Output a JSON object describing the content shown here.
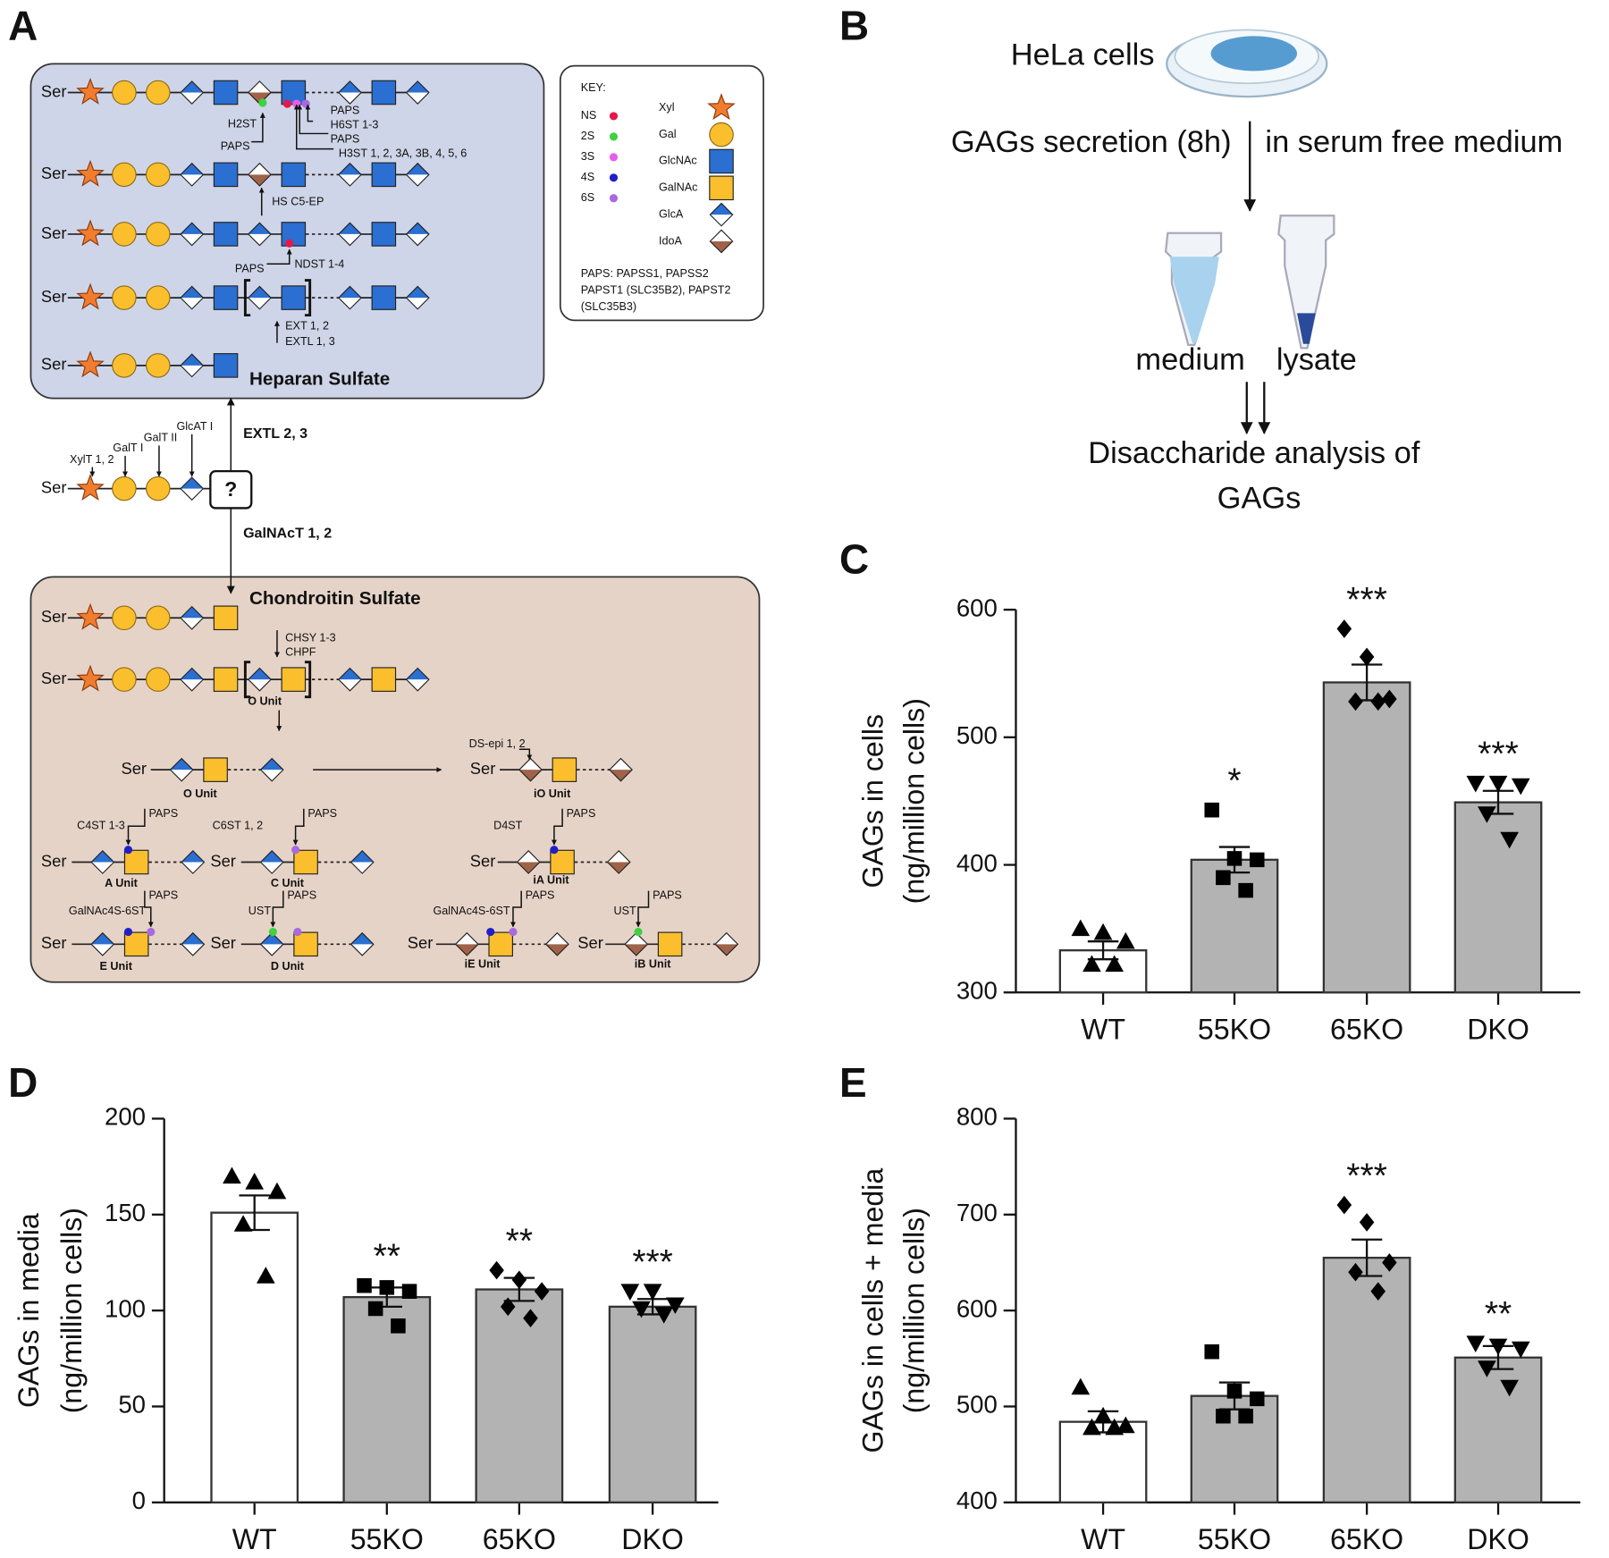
{
  "panel_labels": [
    "A",
    "B",
    "C",
    "D",
    "E"
  ],
  "panel_a": {
    "ser": "Ser",
    "heparan": {
      "title": "Heparan Sulfate",
      "enzymes": [
        "H2ST",
        "PAPS",
        "PAPS",
        "H6ST 1-3",
        "PAPS",
        "H3ST 1, 2, 3A, 3B, 4, 5, 6",
        "HS C5-EP",
        "PAPS",
        "NDST 1-4",
        "EXT 1, 2",
        "EXTL 1, 3"
      ]
    },
    "linker": {
      "enzymes": [
        "XylT 1, 2",
        "GalT I",
        "GalT II",
        "GlcAT I"
      ],
      "question": "?",
      "to_heparan": "EXTL 2, 3",
      "to_chondroitin": "GalNAcT 1, 2"
    },
    "chondroitin": {
      "title": "Chondroitin Sulfate",
      "enzymes": [
        "CHSY 1-3",
        "CHPF",
        "DS-epi 1, 2",
        "C4ST 1-3",
        "PAPS",
        "C6ST 1, 2",
        "PAPS",
        "D4ST",
        "PAPS",
        "GalNAc4S-6ST",
        "PAPS",
        "UST",
        "PAPS",
        "GalNAc4S-6ST",
        "PAPS",
        "UST",
        "PAPS"
      ],
      "units": [
        "O Unit",
        "O Unit",
        "iO Unit",
        "A Unit",
        "C Unit",
        "iA Unit",
        "E Unit",
        "D Unit",
        "iE Unit",
        "iB Unit"
      ]
    },
    "key": {
      "title": "KEY:",
      "sulfates": [
        {
          "label": "NS",
          "color": "#e8174b"
        },
        {
          "label": "2S",
          "color": "#3fd13f"
        },
        {
          "label": "3S",
          "color": "#e85ce8"
        },
        {
          "label": "4S",
          "color": "#2020c8"
        },
        {
          "label": "6S",
          "color": "#a86ae0"
        }
      ],
      "sugars": [
        "Xyl",
        "Gal",
        "GlcNAc",
        "GalNAc",
        "GlcA",
        "IdoA"
      ],
      "paps_note": [
        "PAPS: PAPSS1,  PAPSS2",
        "PAPST1 (SLC35B2),  PAPST2",
        "(SLC35B3)"
      ]
    }
  },
  "panel_b": {
    "cells": "HeLa cells",
    "secretion": "GAGs secretion (8h)",
    "medium_note": "in serum free medium",
    "medium": "medium",
    "lysate": "lysate",
    "analysis": [
      "Disaccharide analysis of",
      "GAGs"
    ]
  },
  "chart_data": [
    {
      "type": "bar",
      "y_label": [
        "GAGs in cells",
        "(ng/million cells)"
      ],
      "categories": [
        "WT",
        "55KO",
        "65KO",
        "DKO"
      ],
      "values": [
        333,
        404,
        543,
        449
      ],
      "errors": [
        7,
        10,
        14,
        9
      ],
      "points": [
        [
          350,
          347,
          340,
          322,
          322
        ],
        [
          443,
          405,
          404,
          390,
          380
        ],
        [
          585,
          563,
          530,
          528,
          528
        ],
        [
          464,
          464,
          462,
          440,
          420
        ]
      ],
      "markers": [
        "triangle",
        "square",
        "diamond",
        "triangle-down"
      ],
      "colors": [
        "#ffffff",
        "#b3b3b3",
        "#b3b3b3",
        "#b3b3b3"
      ],
      "annotations": [
        null,
        "*",
        "***",
        "***"
      ],
      "ylim": [
        300,
        600
      ],
      "yticks": [
        300,
        400,
        500,
        600
      ]
    },
    {
      "type": "bar",
      "y_label": [
        "GAGs in media",
        "(ng/million cells)"
      ],
      "categories": [
        "WT",
        "55KO",
        "65KO",
        "DKO"
      ],
      "values": [
        151,
        107,
        111,
        102
      ],
      "errors": [
        9,
        5,
        6,
        4
      ],
      "points": [
        [
          170,
          167,
          162,
          145,
          118
        ],
        [
          113,
          112,
          110,
          101,
          92
        ],
        [
          121,
          116,
          110,
          102,
          96
        ],
        [
          110,
          110,
          103,
          101,
          98
        ]
      ],
      "markers": [
        "triangle",
        "square",
        "diamond",
        "triangle-down"
      ],
      "colors": [
        "#ffffff",
        "#b3b3b3",
        "#b3b3b3",
        "#b3b3b3"
      ],
      "annotations": [
        null,
        "**",
        "**",
        "***"
      ],
      "ylim": [
        0,
        200
      ],
      "yticks": [
        0,
        50,
        100,
        150,
        200
      ]
    },
    {
      "type": "bar",
      "y_label": [
        "GAGs in cells + media",
        "(ng/million cells)"
      ],
      "categories": [
        "WT",
        "55KO",
        "65KO",
        "DKO"
      ],
      "values": [
        484,
        511,
        655,
        551
      ],
      "errors": [
        11,
        14,
        19,
        12
      ],
      "points": [
        [
          520,
          490,
          480,
          478,
          478
        ],
        [
          557,
          516,
          508,
          490,
          490
        ],
        [
          710,
          692,
          650,
          640,
          620
        ],
        [
          566,
          563,
          560,
          540,
          520
        ]
      ],
      "markers": [
        "triangle",
        "square",
        "diamond",
        "triangle-down"
      ],
      "colors": [
        "#ffffff",
        "#b3b3b3",
        "#b3b3b3",
        "#b3b3b3"
      ],
      "annotations": [
        null,
        null,
        "***",
        "**"
      ],
      "ylim": [
        400,
        800
      ],
      "yticks": [
        400,
        500,
        600,
        700,
        800
      ]
    }
  ]
}
